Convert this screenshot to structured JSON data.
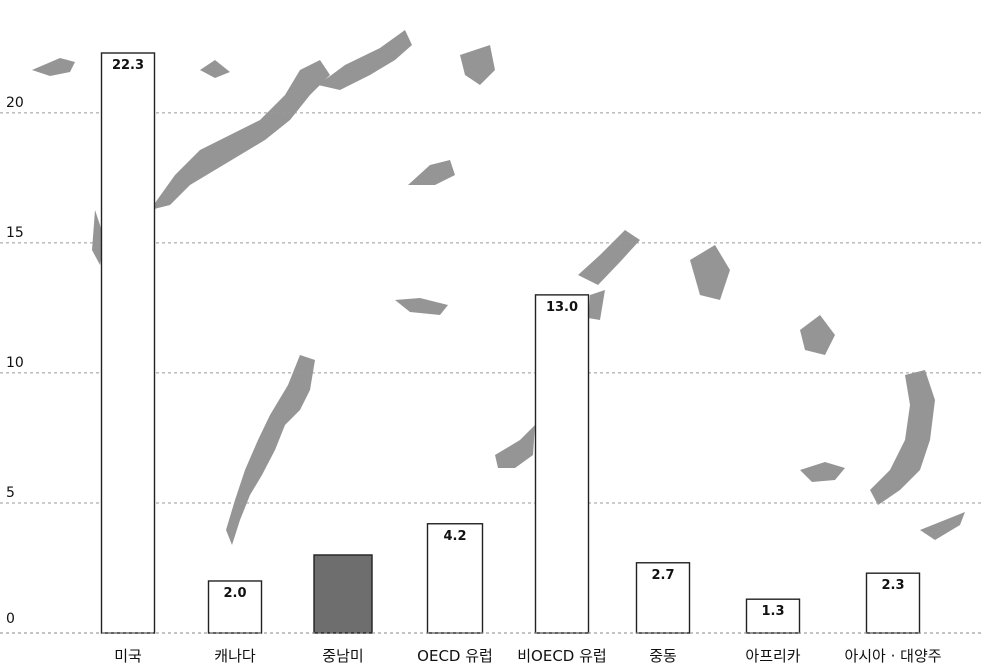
{
  "chart_data": {
    "type": "bar",
    "title": "",
    "xlabel": "",
    "ylabel": "",
    "ylim": [
      0,
      22.3
    ],
    "yticks": [
      0,
      5,
      10,
      15,
      20
    ],
    "grid": true,
    "background": "world map",
    "categories": [
      "미국",
      "캐나다",
      "중남미",
      "OECD 유럽",
      "비OECD 유럽",
      "중동",
      "아프리카",
      "아시아 · 대양주"
    ],
    "values": [
      22.3,
      2.0,
      3.0,
      4.2,
      13.0,
      2.7,
      1.3,
      2.3
    ],
    "data_labels": [
      "22.3",
      "2.0",
      "",
      "4.2",
      "13.0",
      "2.7",
      "1.3",
      "2.3"
    ],
    "highlight_index": 2,
    "colors": {
      "bar_fill": "#ffffff",
      "bar_stroke": "#222222",
      "highlight_fill": "#6e6e6e",
      "map_land": "#8a8a8a",
      "grid": "#9a9a9a"
    }
  }
}
